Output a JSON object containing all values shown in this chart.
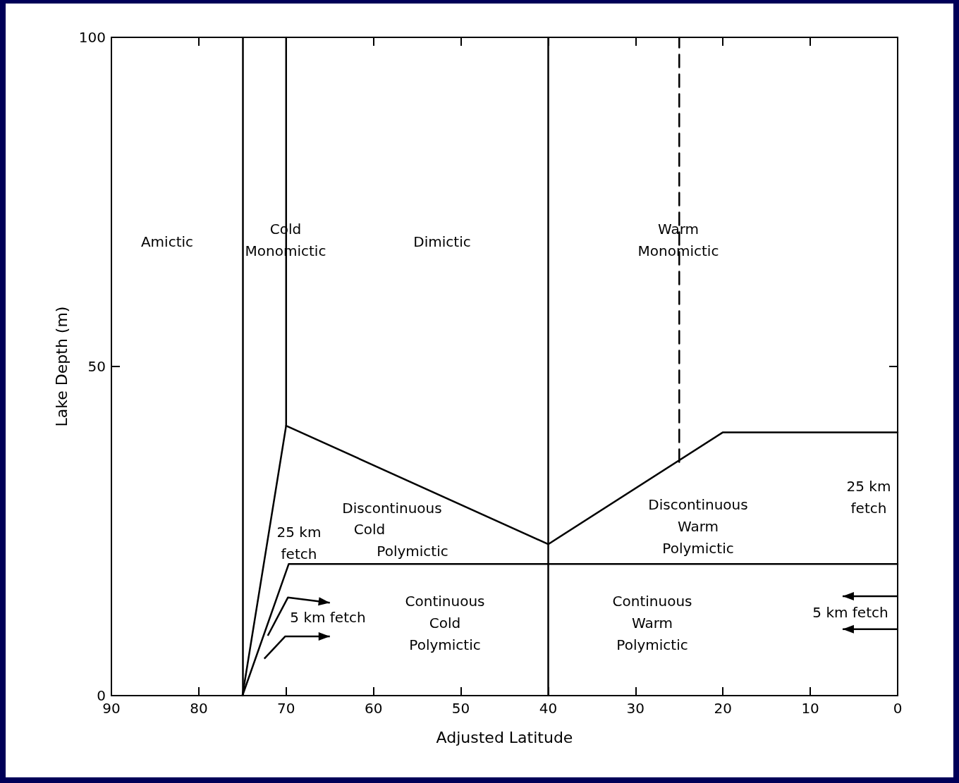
{
  "chart_data": {
    "type": "line",
    "xlabel": "Adjusted Latitude",
    "ylabel": "Lake Depth (m)",
    "xlim": [
      90,
      0
    ],
    "xticks": [
      90,
      80,
      70,
      60,
      50,
      40,
      30,
      20,
      10,
      0
    ],
    "ylim": [
      0,
      100
    ],
    "yticks": [
      0,
      50,
      100
    ],
    "grid": false,
    "marker": "none",
    "series": [
      {
        "color": "#000000",
        "x": [
          75,
          70,
          70
        ],
        "values": [
          0,
          41,
          100
        ]
      },
      {
        "color": "#000000",
        "x": [
          70,
          40,
          20,
          0
        ],
        "values": [
          41,
          23,
          40,
          40
        ]
      },
      {
        "color": "#000000",
        "x": [
          25,
          25
        ],
        "values": [
          35.5,
          100
        ],
        "line_style": "dashed"
      },
      {
        "color": "#000000",
        "x": [
          75,
          69.7,
          0
        ],
        "values": [
          0,
          20,
          20
        ]
      }
    ],
    "ref_lines": [
      {
        "axis": "x",
        "value": 75,
        "color": "#000000"
      },
      {
        "axis": "x",
        "value": 40,
        "color": "#000000"
      }
    ],
    "annotations": [
      "Amictic",
      "Cold\nMonomictic",
      "Dimictic",
      "Warm\nMonomictic",
      "Discontinuous",
      "Cold",
      "Polymictic",
      "25 km\nfetch",
      "5 km fetch",
      "Continuous\nCold\nPolymictic",
      "Discontinuous\nWarm\nPolymictic",
      "Continuous\nWarm\nPolymictic",
      "25 km\nfetch",
      "5 km fetch"
    ]
  }
}
